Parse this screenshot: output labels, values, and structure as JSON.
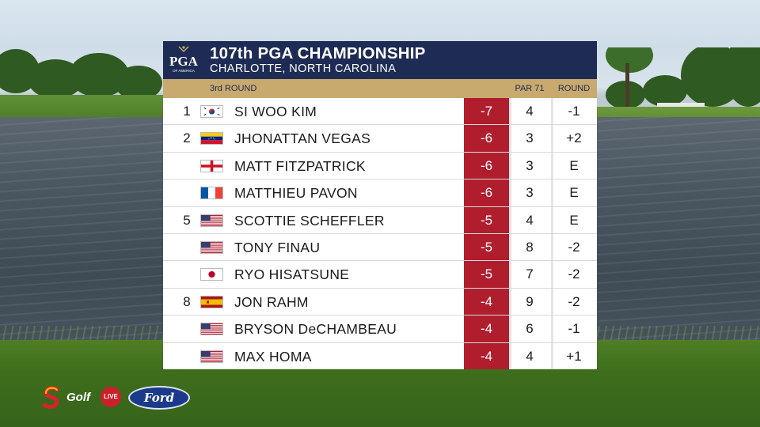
{
  "header": {
    "logo_text": "PGA",
    "logo_subtext": "OF AMERICA",
    "title": "107th PGA CHAMPIONSHIP",
    "subtitle": "CHARLOTTE, NORTH CAROLINA"
  },
  "subheader": {
    "round_label": "3rd ROUND",
    "par_label": "PAR 71",
    "round_col_label": "ROUND"
  },
  "colors": {
    "header_bg": "#1e2c55",
    "subheader_bg": "#c8a96e",
    "score_bg": "#b01e2e"
  },
  "players": [
    {
      "pos": "1",
      "flag": "south-korea",
      "name": "SI WOO KIM",
      "score": "-7",
      "thru": "4",
      "round": "-1"
    },
    {
      "pos": "2",
      "flag": "venezuela",
      "name": "JHONATTAN VEGAS",
      "score": "-6",
      "thru": "3",
      "round": "+2"
    },
    {
      "pos": "",
      "flag": "england",
      "name": "MATT FITZPATRICK",
      "score": "-6",
      "thru": "3",
      "round": "E"
    },
    {
      "pos": "",
      "flag": "france",
      "name": "MATTHIEU PAVON",
      "score": "-6",
      "thru": "3",
      "round": "E"
    },
    {
      "pos": "5",
      "flag": "usa",
      "name": "SCOTTIE SCHEFFLER",
      "score": "-5",
      "thru": "4",
      "round": "E"
    },
    {
      "pos": "",
      "flag": "usa",
      "name": "TONY FINAU",
      "score": "-5",
      "thru": "8",
      "round": "-2"
    },
    {
      "pos": "",
      "flag": "japan",
      "name": "RYO HISATSUNE",
      "score": "-5",
      "thru": "7",
      "round": "-2"
    },
    {
      "pos": "8",
      "flag": "spain",
      "name": "JON RAHM",
      "score": "-4",
      "thru": "9",
      "round": "-2"
    },
    {
      "pos": "",
      "flag": "usa",
      "name": "BRYSON DeCHAMBEAU",
      "score": "-4",
      "thru": "6",
      "round": "-1"
    },
    {
      "pos": "",
      "flag": "usa",
      "name": "MAX HOMA",
      "score": "-4",
      "thru": "4",
      "round": "+1"
    }
  ],
  "broadcaster": {
    "channel_icon": "supersport-s-icon",
    "channel": "Golf",
    "live_badge": "LIVE",
    "sponsor": "Ford"
  }
}
